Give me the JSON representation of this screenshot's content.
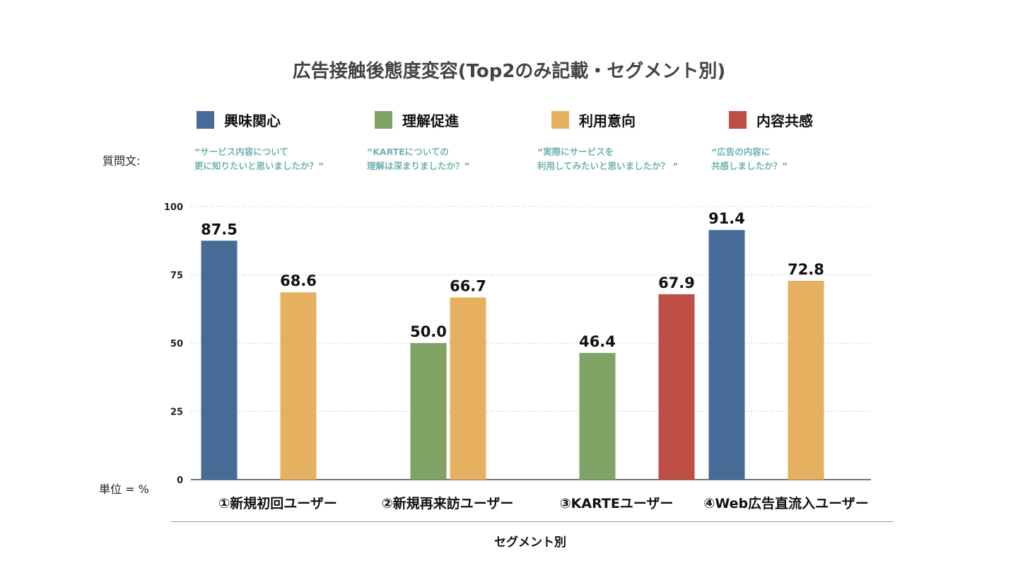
{
  "chart_data": {
    "type": "bar",
    "title": "広告接触後態度変容(Top2のみ記載・セグメント別)",
    "question_label": "質問文:",
    "unit_label": "単位 = %",
    "xlabel": "セグメント別",
    "ylim": [
      0,
      100
    ],
    "yticks": [
      0,
      25,
      50,
      75,
      100
    ],
    "categories": [
      "①新規初回ユーザー",
      "②新規再来訪ユーザー",
      "③KARTEユーザー",
      "④Web広告直流入ユーザー"
    ],
    "series": [
      {
        "name": "興味関心",
        "color": "#466b97",
        "question": "“サービス内容について\n更に知りたいと思いましたか？”",
        "values": [
          87.5,
          null,
          null,
          91.4
        ]
      },
      {
        "name": "理解促進",
        "color": "#7ea365",
        "question": "“KARTEについての\n理解は深まりましたか？”",
        "values": [
          null,
          50.0,
          46.4,
          null
        ]
      },
      {
        "name": "利用意向",
        "color": "#e6b061",
        "question": "“実際にサービスを\n利用してみたいと思いましたか？ “",
        "values": [
          68.6,
          66.7,
          null,
          72.8
        ]
      },
      {
        "name": "内容共感",
        "color": "#bf4e46",
        "question": "“広告の内容に\n共感しましたか？”",
        "values": [
          null,
          null,
          67.9,
          null
        ]
      }
    ]
  }
}
